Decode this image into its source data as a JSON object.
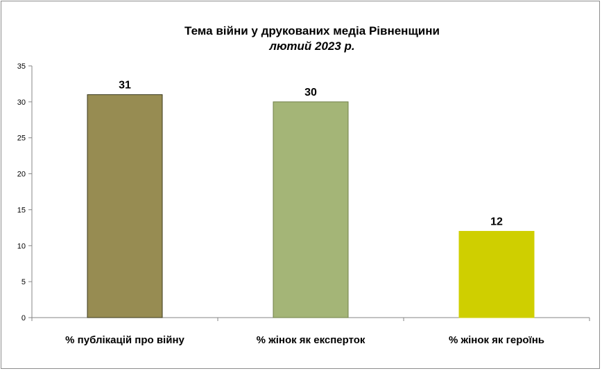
{
  "chart_data": {
    "type": "bar",
    "title": "Тема війни у друкованих  медіа Рівненщини",
    "subtitle": "лютий 2023 р.",
    "categories": [
      "% публікацій про війну",
      "% жінок як експерток",
      "% жінок як героїнь"
    ],
    "values": [
      31,
      30,
      12
    ],
    "colors": [
      "#978c52",
      "#a4b577",
      "#cfcf00"
    ],
    "ylim": [
      0,
      35
    ],
    "yticks": [
      "0",
      "5",
      "10",
      "15",
      "20",
      "25",
      "30",
      "35"
    ],
    "grid": false,
    "legend": "none"
  }
}
